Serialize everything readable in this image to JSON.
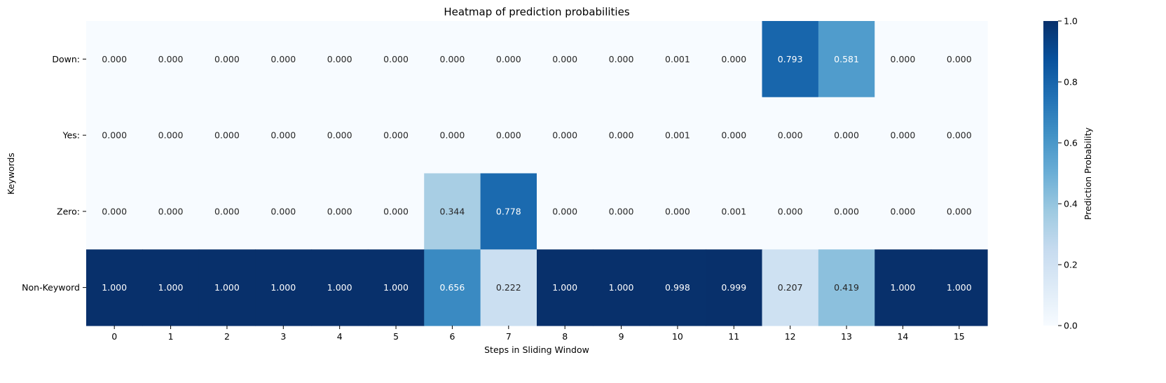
{
  "chart_data": {
    "type": "heatmap",
    "title": "Heatmap of prediction probabilities",
    "xlabel": "Steps in Sliding Window",
    "ylabel": "Keywords",
    "x_categories": [
      "0",
      "1",
      "2",
      "3",
      "4",
      "5",
      "6",
      "7",
      "8",
      "9",
      "10",
      "11",
      "12",
      "13",
      "14",
      "15"
    ],
    "y_categories": [
      "Down:",
      "Yes:",
      "Zero:",
      "Non-Keyword"
    ],
    "values": [
      [
        0.0,
        0.0,
        0.0,
        0.0,
        0.0,
        0.0,
        0.0,
        0.0,
        0.0,
        0.0,
        0.001,
        0.0,
        0.793,
        0.581,
        0.0,
        0.0
      ],
      [
        0.0,
        0.0,
        0.0,
        0.0,
        0.0,
        0.0,
        0.0,
        0.0,
        0.0,
        0.0,
        0.001,
        0.0,
        0.0,
        0.0,
        0.0,
        0.0
      ],
      [
        0.0,
        0.0,
        0.0,
        0.0,
        0.0,
        0.0,
        0.344,
        0.778,
        0.0,
        0.0,
        0.0,
        0.001,
        0.0,
        0.0,
        0.0,
        0.0
      ],
      [
        1.0,
        1.0,
        1.0,
        1.0,
        1.0,
        1.0,
        0.656,
        0.222,
        1.0,
        1.0,
        0.998,
        0.999,
        0.207,
        0.419,
        1.0,
        1.0
      ]
    ],
    "value_format_decimals": 3,
    "colormap": "Blues",
    "colorbar": {
      "label": "Prediction Probability",
      "range": [
        0,
        1
      ],
      "ticks": [
        "0.0",
        "0.2",
        "0.4",
        "0.6",
        "0.8",
        "1.0"
      ]
    },
    "colormap_stops": [
      "#f7fbff",
      "#deebf7",
      "#c6dbef",
      "#9ecae1",
      "#6baed6",
      "#4292c6",
      "#2171b5",
      "#08519c",
      "#08306b"
    ]
  }
}
